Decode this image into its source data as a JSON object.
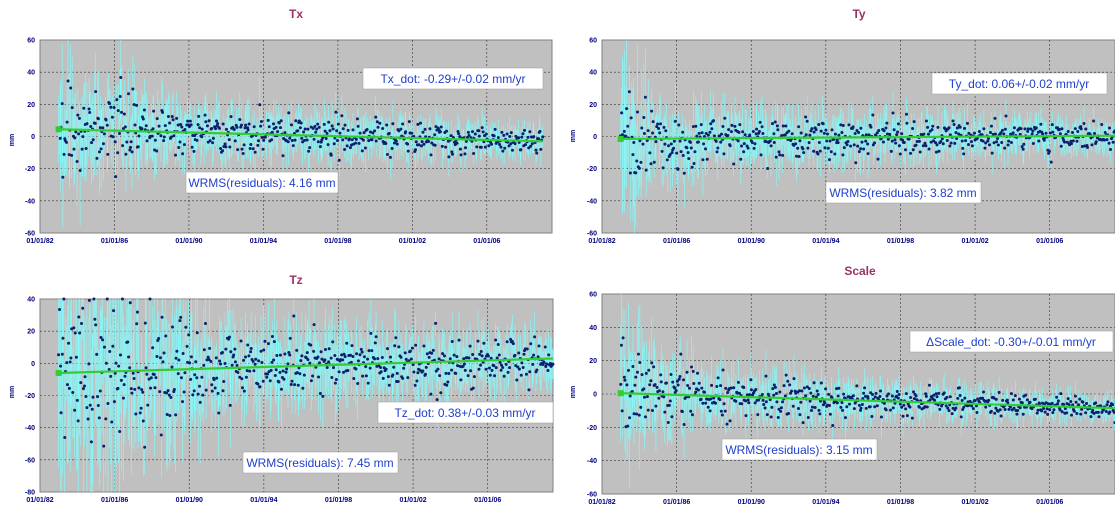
{
  "colors": {
    "plot_bg": "#c0c0c0",
    "points": "#0b1f6e",
    "error_bars": "#7fffff",
    "trend": "#33cc33",
    "title": "#993366",
    "annotation_text": "#1f3fd0",
    "tick_text": "#000080"
  },
  "chart_data": [
    {
      "type": "scatter",
      "title": "Tx",
      "xlabel": "",
      "ylabel": "mm",
      "x_ticks": [
        "01/01/82",
        "01/01/86",
        "01/01/90",
        "01/01/94",
        "01/01/98",
        "01/01/02",
        "01/01/06"
      ],
      "xlim": [
        1982,
        2009.5
      ],
      "ylim": [
        -60,
        60
      ],
      "y_ticks": [
        60,
        40,
        20,
        0,
        -20,
        -40,
        -60
      ],
      "trend": {
        "x": [
          1983,
          2009
        ],
        "y": [
          4.5,
          -3.0
        ]
      },
      "series": [
        {
          "x_start": 1983,
          "x_end": 2009,
          "envelope": [
            [
              1983,
              18
            ],
            [
              1986,
              14
            ],
            [
              1989,
              9
            ],
            [
              2009,
              5
            ]
          ]
        }
      ],
      "annotations": [
        "Tx_dot: -0.29+/-0.02 mm/yr",
        "WRMS(residuals): 4.16 mm"
      ],
      "grid": true
    },
    {
      "type": "scatter",
      "title": "Ty",
      "xlabel": "",
      "ylabel": "mm",
      "x_ticks": [
        "01/01/82",
        "01/01/86",
        "01/01/90",
        "01/01/94",
        "01/01/98",
        "01/01/02",
        "01/01/06"
      ],
      "xlim": [
        1982,
        2009.5
      ],
      "ylim": [
        -60,
        60
      ],
      "y_ticks": [
        60,
        40,
        20,
        0,
        -20,
        -40,
        -60
      ],
      "trend": {
        "x": [
          1983,
          2009.5
        ],
        "y": [
          -1.5,
          0.5
        ]
      },
      "series": [
        {
          "x_start": 1983,
          "x_end": 2009.5,
          "envelope": [
            [
              1983,
              25
            ],
            [
              1985,
              12
            ],
            [
              1989,
              9
            ],
            [
              2009,
              5
            ]
          ]
        }
      ],
      "annotations": [
        "Ty_dot: 0.06+/-0.02 mm/yr",
        "WRMS(residuals): 3.82 mm"
      ],
      "grid": true
    },
    {
      "type": "scatter",
      "title": "Tz",
      "xlabel": "",
      "ylabel": "mm",
      "x_ticks": [
        "01/01/82",
        "01/01/86",
        "01/01/90",
        "01/01/94",
        "01/01/98",
        "01/01/02",
        "01/01/06"
      ],
      "xlim": [
        1982,
        2009.5
      ],
      "ylim": [
        -80,
        40
      ],
      "y_ticks": [
        40,
        20,
        0,
        -20,
        -40,
        -60,
        -80
      ],
      "trend": {
        "x": [
          1983,
          2009.5
        ],
        "y": [
          -6.0,
          3.0
        ]
      },
      "series": [
        {
          "x_start": 1983,
          "x_end": 2009.5,
          "envelope": [
            [
              1983,
              35
            ],
            [
              1987,
              28
            ],
            [
              1992,
              14
            ],
            [
              2009,
              8
            ]
          ]
        }
      ],
      "annotations": [
        "Tz_dot: 0.38+/-0.03 mm/yr",
        "WRMS(residuals): 7.45 mm"
      ],
      "grid": true
    },
    {
      "type": "scatter",
      "title": "Scale",
      "xlabel": "",
      "ylabel": "mm",
      "x_ticks": [
        "01/01/82",
        "01/01/86",
        "01/01/90",
        "01/01/94",
        "01/01/98",
        "01/01/02",
        "01/01/06"
      ],
      "xlim": [
        1982,
        2009.5
      ],
      "ylim": [
        -60,
        60
      ],
      "y_ticks": [
        60,
        40,
        20,
        0,
        -20,
        -40,
        -60
      ],
      "trend": {
        "x": [
          1983,
          2009.5
        ],
        "y": [
          0.5,
          -8.5
        ]
      },
      "series": [
        {
          "x_start": 1983,
          "x_end": 2009.5,
          "envelope": [
            [
              1983,
              22
            ],
            [
              1985,
              12
            ],
            [
              1988,
              8
            ],
            [
              2009,
              4
            ]
          ]
        }
      ],
      "annotations": [
        "ΔScale_dot: -0.30+/-0.01 mm/yr",
        "WRMS(residuals): 3.15 mm"
      ],
      "grid": true
    }
  ]
}
